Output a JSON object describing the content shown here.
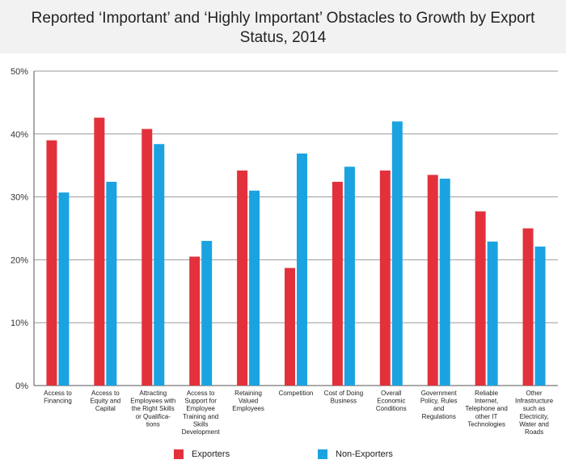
{
  "chart_data": {
    "type": "bar",
    "title": "Reported ‘Important’ and ‘Highly Important’ Obstacles to Growth by Export Status, 2014",
    "categories": [
      [
        "Access to",
        "Financing"
      ],
      [
        "Access to",
        "Equity and",
        "Capital"
      ],
      [
        "Attracting",
        "Employees with",
        "the Right Skills",
        "or Qualifica-",
        "tions"
      ],
      [
        "Access to",
        "Support for",
        "Employee",
        "Training and",
        "Skills",
        "Development"
      ],
      [
        "Retaining",
        "Valued",
        "Employees"
      ],
      [
        "Competition"
      ],
      [
        "Cost of Doing",
        "Business"
      ],
      [
        "Overall",
        "Economic",
        "Conditions"
      ],
      [
        "Government",
        "Policy, Rules",
        "and",
        "Regulations"
      ],
      [
        "Reliable",
        "Internet,",
        "Telephone and",
        "other IT",
        "Technologies"
      ],
      [
        "Other",
        "Infrastructure",
        "such as",
        "Electricity,",
        "Water and",
        "Roads"
      ]
    ],
    "series": [
      {
        "name": "Exporters",
        "color": "#e3313c",
        "values": [
          39.0,
          42.6,
          40.8,
          20.5,
          34.2,
          18.7,
          32.4,
          34.2,
          33.5,
          27.7,
          25.0
        ]
      },
      {
        "name": "Non-Exporters",
        "color": "#1aa3e0",
        "values": [
          30.7,
          32.4,
          38.4,
          23.0,
          31.0,
          36.9,
          34.8,
          42.0,
          32.9,
          22.9,
          22.1
        ]
      }
    ],
    "yticks": [
      "0%",
      "10%",
      "20%",
      "30%",
      "40%",
      "50%"
    ],
    "ylim": [
      0,
      50
    ],
    "grid": true,
    "legend": "bottom"
  }
}
